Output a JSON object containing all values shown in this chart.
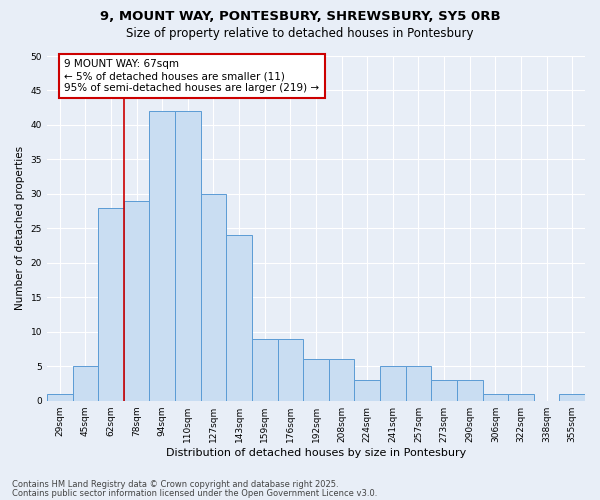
{
  "title_line1": "9, MOUNT WAY, PONTESBURY, SHREWSBURY, SY5 0RB",
  "title_line2": "Size of property relative to detached houses in Pontesbury",
  "xlabel": "Distribution of detached houses by size in Pontesbury",
  "ylabel": "Number of detached properties",
  "categories": [
    "29sqm",
    "45sqm",
    "62sqm",
    "78sqm",
    "94sqm",
    "110sqm",
    "127sqm",
    "143sqm",
    "159sqm",
    "176sqm",
    "192sqm",
    "208sqm",
    "224sqm",
    "241sqm",
    "257sqm",
    "273sqm",
    "290sqm",
    "306sqm",
    "322sqm",
    "338sqm",
    "355sqm"
  ],
  "values": [
    1,
    5,
    28,
    29,
    42,
    42,
    30,
    24,
    9,
    9,
    6,
    6,
    3,
    5,
    5,
    3,
    3,
    1,
    1,
    0,
    1
  ],
  "bar_color": "#c9ddf2",
  "bar_edge_color": "#5b9bd5",
  "red_line_index": 2,
  "annotation_text": "9 MOUNT WAY: 67sqm\n← 5% of detached houses are smaller (11)\n95% of semi-detached houses are larger (219) →",
  "annotation_box_facecolor": "#ffffff",
  "annotation_box_edgecolor": "#cc0000",
  "red_line_color": "#cc0000",
  "ylim": [
    0,
    50
  ],
  "yticks": [
    0,
    5,
    10,
    15,
    20,
    25,
    30,
    35,
    40,
    45,
    50
  ],
  "footnote1": "Contains HM Land Registry data © Crown copyright and database right 2025.",
  "footnote2": "Contains public sector information licensed under the Open Government Licence v3.0.",
  "bg_color": "#e8eef7",
  "grid_color": "#ffffff",
  "title_fontsize": 9.5,
  "subtitle_fontsize": 8.5,
  "ylabel_fontsize": 7.5,
  "xlabel_fontsize": 8,
  "tick_fontsize": 6.5,
  "annot_fontsize": 7.5,
  "footnote_fontsize": 6
}
